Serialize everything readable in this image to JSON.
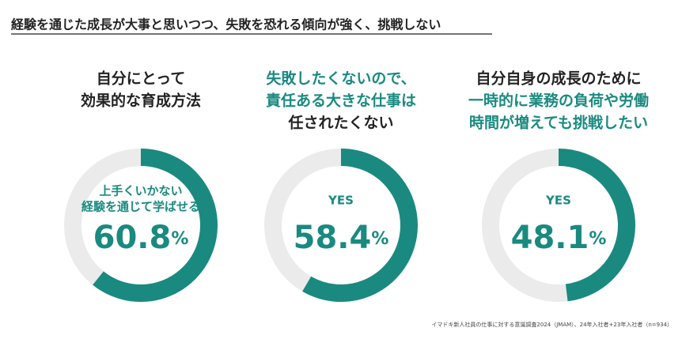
{
  "title": "経験を通じた成長が大事と思いつつ、失敗を恐れる傾向が強く、挑戦しない",
  "source": "イマドキ新人社員の仕事に対する意識調査2024（JMAM）、24年入社者+23年入社者（n=934）",
  "chart_data": [
    {
      "type": "pie",
      "title": [
        "自分にとって",
        "効果的な育成方法"
      ],
      "title_colors": [
        "#222222",
        "#222222"
      ],
      "center_label": [
        "上手くいかない",
        "経験を通じて学ばせる"
      ],
      "values": [
        60.8
      ],
      "value_labels": [
        "60.8%"
      ],
      "color": "#1a8a80",
      "track_color": "#ebebeb"
    },
    {
      "type": "pie",
      "title": [
        "失敗したくないので、",
        "責任ある大きな仕事は",
        "任されたくない"
      ],
      "title_colors": [
        "#1a8a80",
        "#1a8a80",
        "#222222"
      ],
      "center_label": [
        "YES"
      ],
      "values": [
        58.4
      ],
      "value_labels": [
        "58.4%"
      ],
      "color": "#1a8a80",
      "track_color": "#ebebeb"
    },
    {
      "type": "pie",
      "title": [
        "自分自身の成長のために",
        "一時的に業務の負荷や労働",
        "時間が増えても挑戦したい"
      ],
      "title_colors": [
        "#222222",
        "#1a8a80",
        "#1a8a80"
      ],
      "center_label": [
        "YES"
      ],
      "values": [
        48.1
      ],
      "value_labels": [
        "48.1%"
      ],
      "color": "#1a8a80",
      "track_color": "#ebebeb"
    }
  ]
}
